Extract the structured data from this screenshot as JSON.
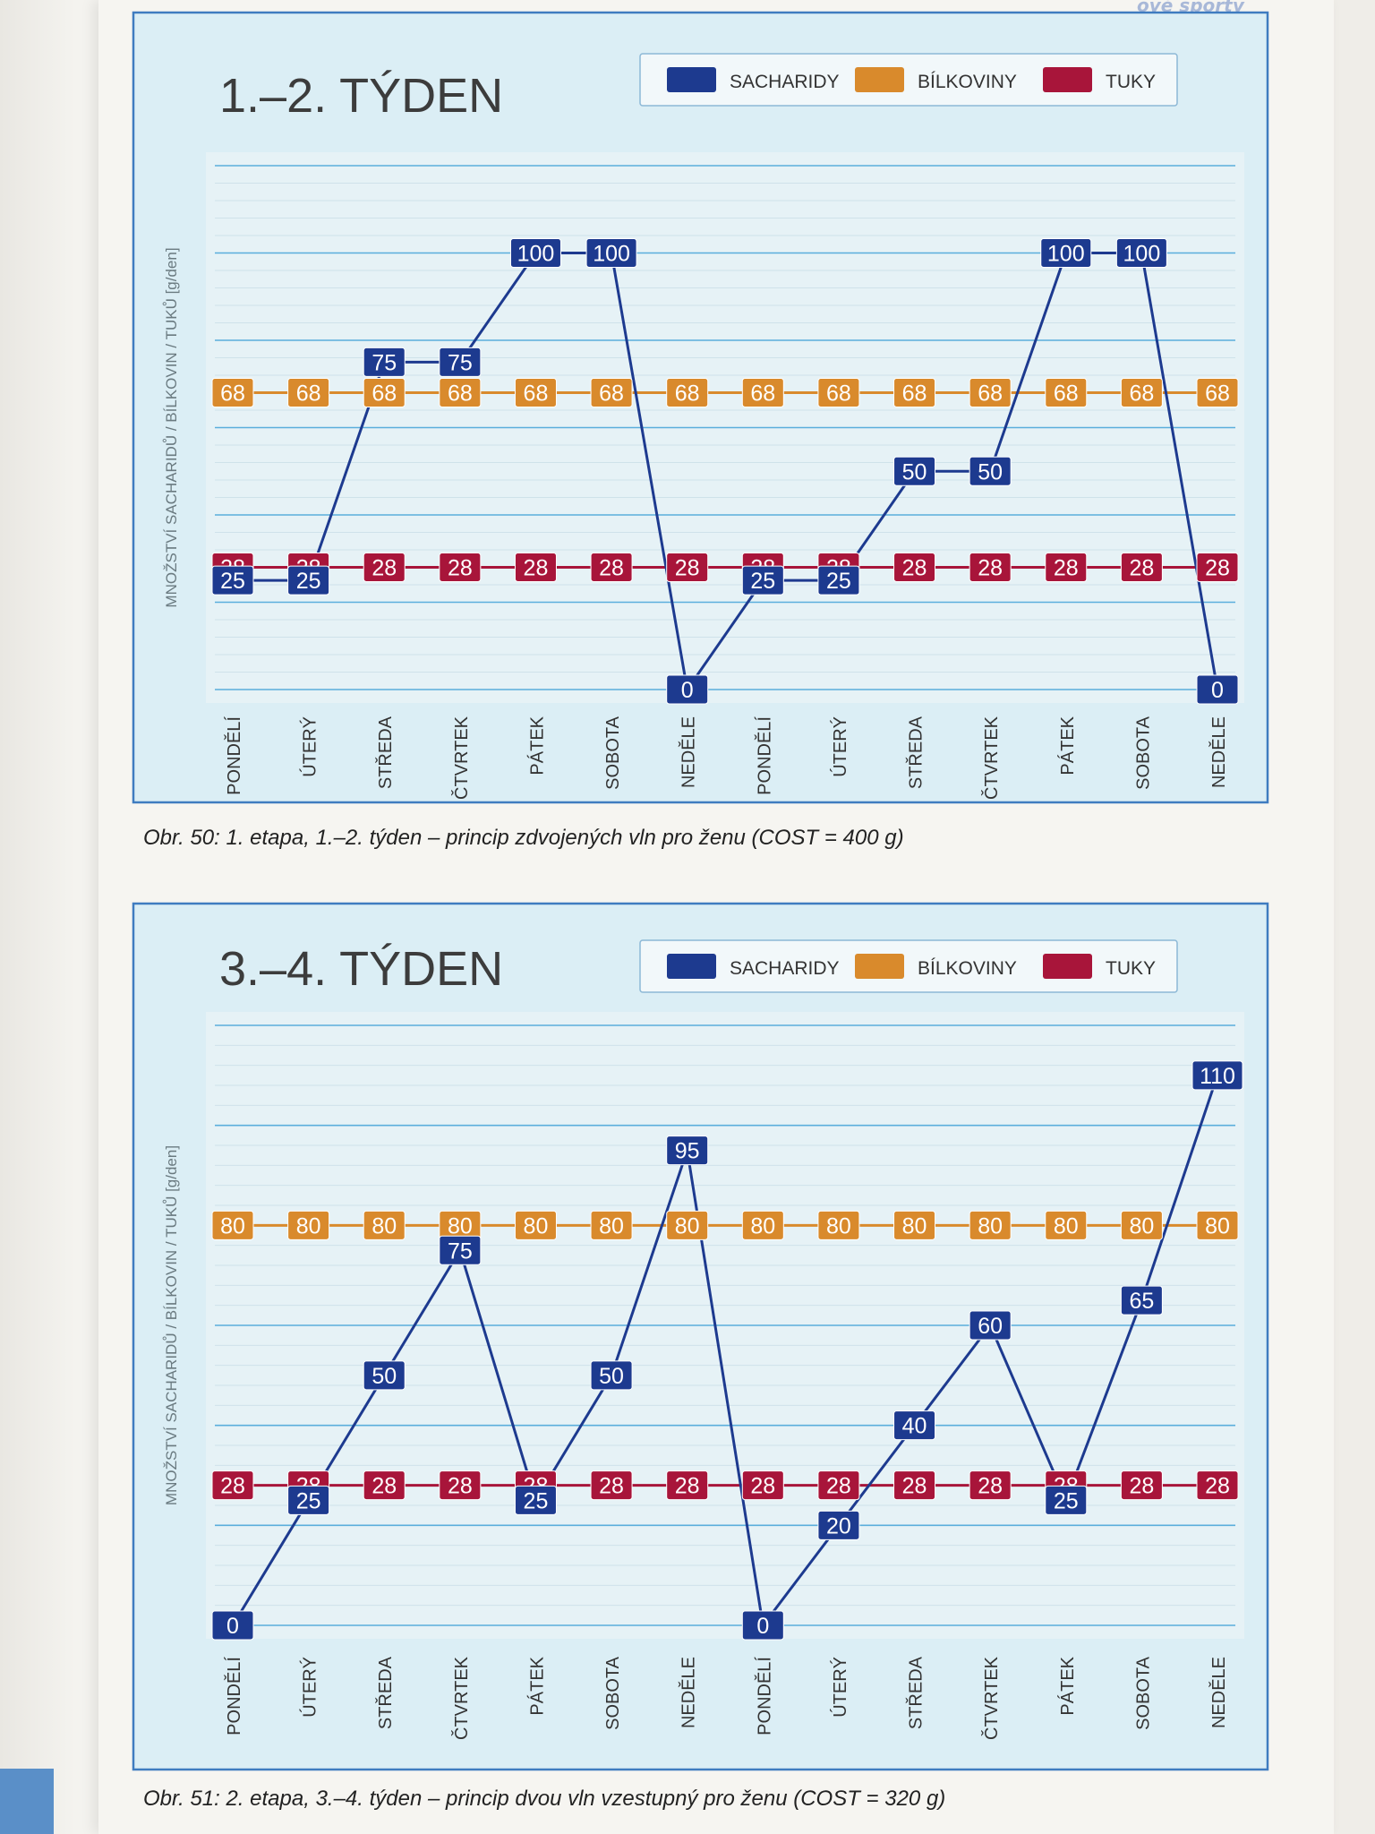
{
  "corner_text": "ové sporty",
  "chart_data": [
    {
      "type": "line",
      "title": "1.–2. TÝDEN",
      "ylabel": "MNOŽSTVÍ SACHARIDŮ / BÍLKOVIN / TUKŮ [g/den]",
      "categories": [
        "PONDĚLÍ",
        "ÚTERÝ",
        "STŘEDA",
        "ČTVRTEK",
        "PÁTEK",
        "SOBOTA",
        "NEDĚLE",
        "PONDĚLÍ",
        "ÚTERÝ",
        "STŘEDA",
        "ČTVRTEK",
        "PÁTEK",
        "SOBOTA",
        "NEDĚLE"
      ],
      "ylim": [
        0,
        120
      ],
      "legend_position": "top-right",
      "grid": true,
      "series": [
        {
          "name": "SACHARIDY",
          "color": "#1d3a8f",
          "values": [
            25,
            25,
            75,
            75,
            100,
            100,
            0,
            25,
            25,
            50,
            50,
            100,
            100,
            0
          ]
        },
        {
          "name": "BÍLKOVINY",
          "color": "#d98a2c",
          "values": [
            68,
            68,
            68,
            68,
            68,
            68,
            68,
            68,
            68,
            68,
            68,
            68,
            68,
            68
          ]
        },
        {
          "name": "TUKY",
          "color": "#a8153a",
          "values": [
            28,
            28,
            28,
            28,
            28,
            28,
            28,
            28,
            28,
            28,
            28,
            28,
            28,
            28
          ]
        }
      ]
    },
    {
      "type": "line",
      "title": "3.–4. TÝDEN",
      "ylabel": "MNOŽSTVÍ SACHARIDŮ / BÍLKOVIN / TUKŮ [g/den]",
      "categories": [
        "PONDĚLÍ",
        "ÚTERÝ",
        "STŘEDA",
        "ČTVRTEK",
        "PÁTEK",
        "SOBOTA",
        "NEDĚLE",
        "PONDĚLÍ",
        "ÚTERÝ",
        "STŘEDA",
        "ČTVRTEK",
        "PÁTEK",
        "SOBOTA",
        "NEDĚLE"
      ],
      "ylim": [
        0,
        120
      ],
      "legend_position": "top-right",
      "grid": true,
      "series": [
        {
          "name": "SACHARIDY",
          "color": "#1d3a8f",
          "values": [
            0,
            25,
            50,
            75,
            25,
            50,
            95,
            0,
            20,
            40,
            60,
            25,
            65,
            110
          ]
        },
        {
          "name": "BÍLKOVINY",
          "color": "#d98a2c",
          "values": [
            80,
            80,
            80,
            80,
            80,
            80,
            80,
            80,
            80,
            80,
            80,
            80,
            80,
            80
          ]
        },
        {
          "name": "TUKY",
          "color": "#a8153a",
          "values": [
            28,
            28,
            28,
            28,
            28,
            28,
            28,
            28,
            28,
            28,
            28,
            28,
            28,
            28
          ]
        }
      ]
    }
  ],
  "captions": [
    "Obr. 50: 1. etapa, 1.–2. týden – princip zdvojených vln pro ženu (COST = 400 g)",
    "Obr. 51: 2. etapa, 3.–4. týden – princip dvou vln vzestupný pro ženu (COST = 320 g)"
  ]
}
